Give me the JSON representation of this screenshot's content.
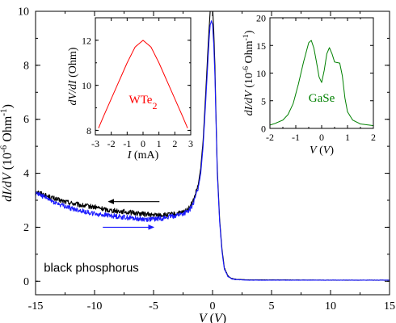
{
  "chart_data": [
    {
      "id": "main",
      "type": "line",
      "xlabel": "V (V)",
      "ylabel": "dI/dV (10^-6 Ohm^-1)",
      "xlim": [
        -15,
        15
      ],
      "ylim": [
        -0.5,
        10
      ],
      "xticks": [
        -15,
        -10,
        -5,
        0,
        5,
        10,
        15
      ],
      "yticks": [
        0,
        2,
        4,
        6,
        8,
        10
      ],
      "annotation": "black phosphorus",
      "series": [
        {
          "color": "#000000",
          "arrow_direction": "left",
          "noise_amplitude": 0.09,
          "x": [
            -15,
            -14,
            -13,
            -12,
            -11,
            -10,
            -9,
            -8,
            -7,
            -6,
            -5,
            -4,
            -3,
            -2.5,
            -2,
            -1.6,
            -1.2,
            -1.0,
            -0.8,
            -0.6,
            -0.4,
            -0.3,
            -0.2,
            -0.1,
            0.0,
            0.1,
            0.2,
            0.3,
            0.4,
            0.6,
            0.8,
            1.0,
            1.3,
            1.6,
            2.0,
            3,
            5,
            10,
            15
          ],
          "y": [
            3.35,
            3.15,
            3.0,
            2.9,
            2.8,
            2.75,
            2.65,
            2.6,
            2.55,
            2.5,
            2.45,
            2.45,
            2.5,
            2.55,
            2.7,
            3.0,
            3.6,
            4.2,
            5.2,
            6.8,
            8.5,
            9.3,
            10.0,
            10.4,
            10.2,
            9.3,
            8.0,
            6.0,
            4.2,
            2.3,
            1.2,
            0.5,
            0.2,
            0.1,
            0.07,
            0.05,
            0.05,
            0.04,
            0.04
          ]
        },
        {
          "color": "#1a1aff",
          "arrow_direction": "right",
          "noise_amplitude": 0.09,
          "x": [
            -15,
            -14,
            -13,
            -12,
            -11,
            -10,
            -9,
            -8,
            -7,
            -6,
            -5,
            -4,
            -3,
            -2.5,
            -2,
            -1.6,
            -1.2,
            -1.0,
            -0.8,
            -0.6,
            -0.4,
            -0.3,
            -0.2,
            -0.1,
            0.0,
            0.1,
            0.2,
            0.3,
            0.4,
            0.6,
            0.8,
            1.0,
            1.3,
            1.6,
            2.0,
            3,
            5,
            10,
            15
          ],
          "y": [
            3.3,
            3.05,
            2.85,
            2.7,
            2.6,
            2.5,
            2.45,
            2.4,
            2.35,
            2.3,
            2.3,
            2.35,
            2.45,
            2.5,
            2.6,
            2.9,
            3.5,
            4.0,
            5.0,
            6.5,
            8.1,
            8.9,
            9.5,
            9.65,
            9.5,
            8.8,
            7.6,
            5.8,
            4.0,
            2.2,
            1.1,
            0.45,
            0.18,
            0.09,
            0.06,
            0.04,
            0.04,
            0.04,
            0.04
          ]
        }
      ]
    },
    {
      "id": "inset-wte2",
      "type": "line",
      "xlabel": "I (mA)",
      "ylabel": "dV/dI (Ohm)",
      "label": "WTe2",
      "label_color": "#ff0000",
      "xlim": [
        -3,
        3
      ],
      "ylim": [
        7.8,
        13
      ],
      "xticks": [
        -3,
        -2,
        -1,
        0,
        1,
        2,
        3
      ],
      "yticks": [
        8,
        10,
        12
      ],
      "series": [
        {
          "color": "#ff0000",
          "x": [
            -2.8,
            -2.5,
            -2,
            -1.5,
            -1,
            -0.5,
            0,
            0.5,
            1,
            1.5,
            2,
            2.5,
            2.8
          ],
          "y": [
            8.1,
            8.6,
            9.4,
            10.2,
            11.0,
            11.7,
            12.0,
            11.7,
            11.0,
            10.2,
            9.4,
            8.6,
            8.1
          ]
        }
      ]
    },
    {
      "id": "inset-gase",
      "type": "line",
      "xlabel": "V (V)",
      "ylabel": "dI/dV (10^-6 Ohm^-1)",
      "label": "GaSe",
      "label_color": "#008000",
      "xlim": [
        -2,
        2
      ],
      "ylim": [
        0,
        20
      ],
      "xticks": [
        -2,
        -1,
        0,
        1,
        2
      ],
      "yticks": [
        0,
        5,
        10,
        15,
        20
      ],
      "series": [
        {
          "color": "#008000",
          "x": [
            -2.0,
            -1.8,
            -1.5,
            -1.3,
            -1.1,
            -0.9,
            -0.7,
            -0.5,
            -0.4,
            -0.3,
            -0.2,
            -0.1,
            0.0,
            0.1,
            0.2,
            0.3,
            0.4,
            0.5,
            0.6,
            0.7,
            0.8,
            0.9,
            1.0,
            1.2,
            1.5,
            2.0
          ],
          "y": [
            0.6,
            0.9,
            1.5,
            2.5,
            4.5,
            8.0,
            12.0,
            15.5,
            15.9,
            14.5,
            12.0,
            9.3,
            8.3,
            10.5,
            13.5,
            14.6,
            13.5,
            12.0,
            11.9,
            11.8,
            9.5,
            5.5,
            3.0,
            1.5,
            0.8,
            0.5
          ]
        }
      ]
    }
  ]
}
